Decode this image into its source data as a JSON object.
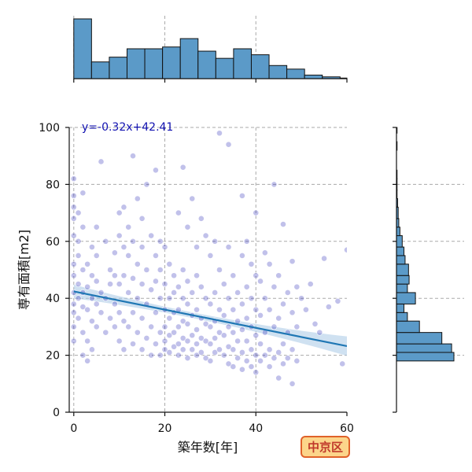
{
  "chart_data": {
    "type": "scatter",
    "title": "",
    "xlabel": "築年数[年]",
    "ylabel": "専有面積[m2]",
    "xlim": [
      -1,
      60
    ],
    "ylim": [
      0,
      100
    ],
    "x_ticks": [
      0,
      20,
      40,
      60
    ],
    "y_ticks": [
      0,
      20,
      40,
      60,
      80,
      100
    ],
    "grid": true,
    "regression": {
      "label": "y=-0.32x+42.41",
      "slope": -0.32,
      "intercept": 42.41
    },
    "badge": "中京区",
    "colors": {
      "points": "#1f1fb4",
      "line": "#1f77b4",
      "band": "#a8c9e6",
      "hist": "#5b9ac8"
    },
    "top_histogram": {
      "bin_edges": [
        0,
        3.9,
        7.8,
        11.7,
        15.6,
        19.5,
        23.4,
        27.3,
        31.2,
        35.1,
        39.0,
        42.9,
        46.8,
        50.7,
        54.6,
        58.5,
        60.0
      ],
      "counts": [
        100,
        28,
        36,
        50,
        50,
        53,
        67,
        46,
        34,
        50,
        40,
        22,
        16,
        6,
        3,
        1
      ]
    },
    "right_histogram": {
      "bin_edges": [
        18,
        21,
        24,
        28,
        32,
        35,
        38,
        42,
        45,
        48,
        52,
        55,
        58,
        62,
        65,
        68,
        72,
        75,
        78,
        82,
        85,
        88,
        92,
        95,
        98,
        100
      ],
      "counts": [
        100,
        96,
        79,
        40,
        19,
        13,
        33,
        19,
        22,
        21,
        15,
        13,
        10,
        6,
        4,
        3,
        2,
        1,
        1,
        1,
        0,
        0,
        1,
        0,
        1
      ]
    },
    "points": [
      [
        0,
        52
      ],
      [
        0,
        48
      ],
      [
        0,
        42
      ],
      [
        0,
        38
      ],
      [
        0,
        35
      ],
      [
        0,
        30
      ],
      [
        0,
        25
      ],
      [
        0,
        62
      ],
      [
        0,
        68
      ],
      [
        0,
        72
      ],
      [
        0,
        76
      ],
      [
        0,
        82
      ],
      [
        1,
        55
      ],
      [
        1,
        45
      ],
      [
        1,
        40
      ],
      [
        1,
        33
      ],
      [
        1,
        60
      ],
      [
        1,
        70
      ],
      [
        2,
        50
      ],
      [
        2,
        42
      ],
      [
        2,
        37
      ],
      [
        2,
        28
      ],
      [
        2,
        20
      ],
      [
        2,
        65
      ],
      [
        2,
        77
      ],
      [
        3,
        52
      ],
      [
        3,
        44
      ],
      [
        3,
        36
      ],
      [
        3,
        25
      ],
      [
        3,
        18
      ],
      [
        4,
        48
      ],
      [
        4,
        40
      ],
      [
        4,
        32
      ],
      [
        4,
        22
      ],
      [
        4,
        58
      ],
      [
        5,
        46
      ],
      [
        5,
        38
      ],
      [
        5,
        30
      ],
      [
        5,
        55
      ],
      [
        5,
        65
      ],
      [
        6,
        42
      ],
      [
        6,
        35
      ],
      [
        6,
        88
      ],
      [
        7,
        40
      ],
      [
        7,
        28
      ],
      [
        7,
        60
      ],
      [
        8,
        45
      ],
      [
        8,
        33
      ],
      [
        8,
        50
      ],
      [
        9,
        48
      ],
      [
        9,
        38
      ],
      [
        9,
        30
      ],
      [
        9,
        56
      ],
      [
        10,
        70
      ],
      [
        10,
        62
      ],
      [
        10,
        45
      ],
      [
        10,
        35
      ],
      [
        10,
        25
      ],
      [
        11,
        72
      ],
      [
        11,
        58
      ],
      [
        11,
        48
      ],
      [
        11,
        32
      ],
      [
        11,
        22
      ],
      [
        12,
        65
      ],
      [
        12,
        55
      ],
      [
        12,
        42
      ],
      [
        12,
        30
      ],
      [
        13,
        90
      ],
      [
        13,
        60
      ],
      [
        13,
        47
      ],
      [
        13,
        35
      ],
      [
        13,
        24
      ],
      [
        14,
        75
      ],
      [
        14,
        52
      ],
      [
        14,
        40
      ],
      [
        14,
        28
      ],
      [
        15,
        68
      ],
      [
        15,
        58
      ],
      [
        15,
        45
      ],
      [
        15,
        33
      ],
      [
        15,
        22
      ],
      [
        16,
        80
      ],
      [
        16,
        50
      ],
      [
        16,
        38
      ],
      [
        16,
        26
      ],
      [
        17,
        62
      ],
      [
        17,
        43
      ],
      [
        17,
        30
      ],
      [
        17,
        20
      ],
      [
        18,
        85
      ],
      [
        18,
        55
      ],
      [
        18,
        46
      ],
      [
        18,
        35
      ],
      [
        18,
        24
      ],
      [
        19,
        60
      ],
      [
        19,
        50
      ],
      [
        19,
        40
      ],
      [
        19,
        28
      ],
      [
        19,
        20
      ],
      [
        20,
        58
      ],
      [
        20,
        45
      ],
      [
        20,
        36
      ],
      [
        20,
        30
      ],
      [
        20,
        25
      ],
      [
        20,
        22
      ],
      [
        21,
        52
      ],
      [
        21,
        40
      ],
      [
        21,
        33
      ],
      [
        21,
        27
      ],
      [
        21,
        21
      ],
      [
        22,
        48
      ],
      [
        22,
        42
      ],
      [
        22,
        35
      ],
      [
        22,
        28
      ],
      [
        22,
        23
      ],
      [
        23,
        70
      ],
      [
        23,
        44
      ],
      [
        23,
        36
      ],
      [
        23,
        30
      ],
      [
        23,
        24
      ],
      [
        23,
        20
      ],
      [
        24,
        86
      ],
      [
        24,
        50
      ],
      [
        24,
        40
      ],
      [
        24,
        32
      ],
      [
        24,
        26
      ],
      [
        24,
        22
      ],
      [
        25,
        65
      ],
      [
        25,
        46
      ],
      [
        25,
        38
      ],
      [
        25,
        31
      ],
      [
        25,
        25
      ],
      [
        25,
        19
      ],
      [
        26,
        75
      ],
      [
        26,
        42
      ],
      [
        26,
        34
      ],
      [
        26,
        27
      ],
      [
        26,
        22
      ],
      [
        27,
        58
      ],
      [
        27,
        48
      ],
      [
        27,
        36
      ],
      [
        27,
        29
      ],
      [
        27,
        24
      ],
      [
        27,
        20
      ],
      [
        28,
        68
      ],
      [
        28,
        44
      ],
      [
        28,
        33
      ],
      [
        28,
        26
      ],
      [
        28,
        21
      ],
      [
        29,
        62
      ],
      [
        29,
        40
      ],
      [
        29,
        31
      ],
      [
        29,
        25
      ],
      [
        29,
        19
      ],
      [
        30,
        55
      ],
      [
        30,
        38
      ],
      [
        30,
        30
      ],
      [
        30,
        24
      ],
      [
        30,
        18
      ],
      [
        31,
        60
      ],
      [
        31,
        42
      ],
      [
        31,
        32
      ],
      [
        31,
        26
      ],
      [
        31,
        21
      ],
      [
        32,
        98
      ],
      [
        32,
        50
      ],
      [
        32,
        36
      ],
      [
        32,
        28
      ],
      [
        32,
        22
      ],
      [
        33,
        45
      ],
      [
        33,
        34
      ],
      [
        33,
        27
      ],
      [
        33,
        20
      ],
      [
        34,
        94
      ],
      [
        34,
        58
      ],
      [
        34,
        40
      ],
      [
        34,
        30
      ],
      [
        34,
        23
      ],
      [
        34,
        17
      ],
      [
        35,
        48
      ],
      [
        35,
        36
      ],
      [
        35,
        28
      ],
      [
        35,
        22
      ],
      [
        35,
        16
      ],
      [
        36,
        42
      ],
      [
        36,
        32
      ],
      [
        36,
        25
      ],
      [
        36,
        19
      ],
      [
        37,
        76
      ],
      [
        37,
        55
      ],
      [
        37,
        38
      ],
      [
        37,
        29
      ],
      [
        37,
        21
      ],
      [
        37,
        15
      ],
      [
        38,
        60
      ],
      [
        38,
        44
      ],
      [
        38,
        33
      ],
      [
        38,
        25
      ],
      [
        38,
        18
      ],
      [
        39,
        52
      ],
      [
        39,
        40
      ],
      [
        39,
        30
      ],
      [
        39,
        22
      ],
      [
        39,
        16
      ],
      [
        40,
        70
      ],
      [
        40,
        48
      ],
      [
        40,
        36
      ],
      [
        40,
        27
      ],
      [
        40,
        20
      ],
      [
        40,
        14
      ],
      [
        41,
        46
      ],
      [
        41,
        34
      ],
      [
        41,
        24
      ],
      [
        41,
        18
      ],
      [
        42,
        56
      ],
      [
        42,
        40
      ],
      [
        42,
        28
      ],
      [
        42,
        20
      ],
      [
        43,
        52
      ],
      [
        43,
        36
      ],
      [
        43,
        22
      ],
      [
        43,
        16
      ],
      [
        44,
        80
      ],
      [
        44,
        44
      ],
      [
        44,
        30
      ],
      [
        44,
        19
      ],
      [
        45,
        48
      ],
      [
        45,
        33
      ],
      [
        45,
        21
      ],
      [
        45,
        12
      ],
      [
        46,
        66
      ],
      [
        46,
        38
      ],
      [
        46,
        24
      ],
      [
        46,
        17
      ],
      [
        47,
        42
      ],
      [
        47,
        28
      ],
      [
        47,
        19
      ],
      [
        48,
        53
      ],
      [
        48,
        35
      ],
      [
        48,
        22
      ],
      [
        48,
        10
      ],
      [
        49,
        44
      ],
      [
        49,
        30
      ],
      [
        49,
        18
      ],
      [
        50,
        40
      ],
      [
        51,
        36
      ],
      [
        52,
        45
      ],
      [
        53,
        31
      ],
      [
        54,
        28
      ],
      [
        55,
        54
      ],
      [
        56,
        37
      ],
      [
        58,
        39
      ],
      [
        59,
        17
      ],
      [
        60,
        57
      ]
    ]
  }
}
